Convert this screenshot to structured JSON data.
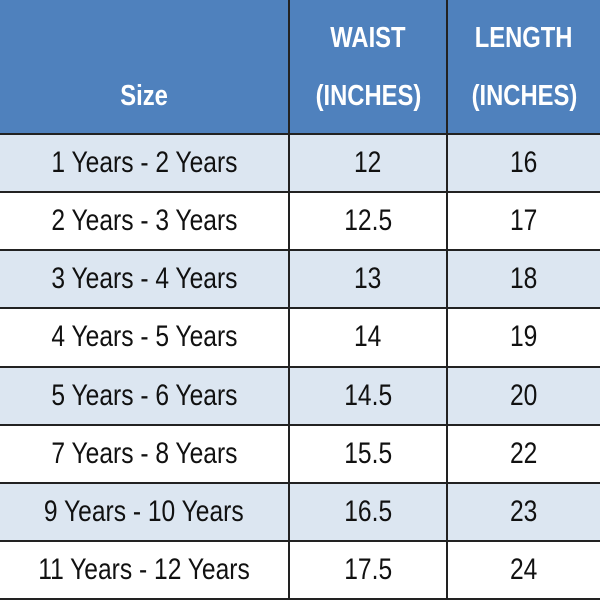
{
  "table": {
    "header": [
      [
        "Size"
      ],
      [
        "WAIST",
        "(INCHES)"
      ],
      [
        "LENGTH",
        "(INCHES)"
      ]
    ],
    "rows": [
      [
        "1 Years - 2 Years",
        "12",
        "16"
      ],
      [
        "2 Years - 3 Years",
        "12.5",
        "17"
      ],
      [
        "3 Years - 4 Years",
        "13",
        "18"
      ],
      [
        "4 Years - 5 Years",
        "14",
        "19"
      ],
      [
        "5 Years - 6 Years",
        "14.5",
        "20"
      ],
      [
        "7 Years - 8 Years",
        "15.5",
        "22"
      ],
      [
        "9 Years - 10 Years",
        "16.5",
        "23"
      ],
      [
        "11 Years - 12 Years",
        "17.5",
        "24"
      ]
    ]
  }
}
